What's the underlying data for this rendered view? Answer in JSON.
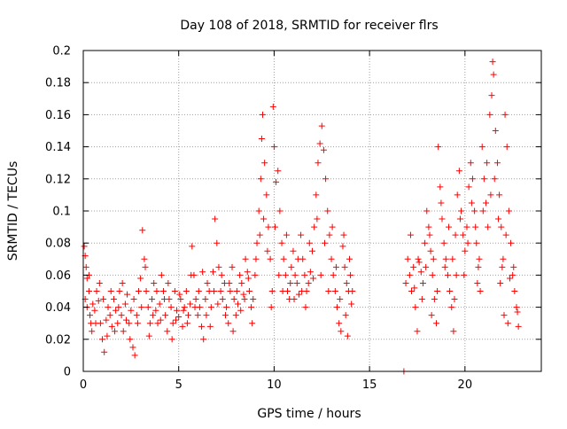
{
  "chart_data": {
    "type": "scatter",
    "title": "Day 108 of 2018, SRMTID for receiver flrs",
    "xlabel": "GPS time / hours",
    "ylabel": "SRMTID / TECUs",
    "xlim": [
      0,
      24
    ],
    "ylim": [
      0,
      0.2
    ],
    "xticks": [
      0,
      5,
      10,
      15,
      20
    ],
    "xtick_labels": [
      "0",
      "5",
      "10",
      "15",
      "20"
    ],
    "yticks": [
      0,
      0.02,
      0.04,
      0.06,
      0.08,
      0.1,
      0.12,
      0.14,
      0.16,
      0.18,
      0.2
    ],
    "ytick_labels": [
      "0",
      "0.02",
      "0.04",
      "0.06",
      "0.08",
      "0.1",
      "0.12",
      "0.14",
      "0.16",
      "0.18",
      "0.2"
    ],
    "grid": true,
    "marker": "+",
    "marker_color": "#ff0000",
    "series": [
      {
        "points": [
          [
            0.05,
            0.078
          ],
          [
            0.1,
            0.072
          ],
          [
            0.15,
            0.065
          ],
          [
            0.2,
            0.058
          ],
          [
            0.1,
            0.045
          ],
          [
            0.2,
            0.04
          ],
          [
            0.3,
            0.05
          ],
          [
            0.35,
            0.035
          ],
          [
            0.4,
            0.03
          ],
          [
            0.5,
            0.042
          ],
          [
            0.6,
            0.038
          ],
          [
            0.7,
            0.05
          ],
          [
            0.8,
            0.044
          ],
          [
            0.9,
            0.03
          ],
          [
            1.0,
            0.02
          ],
          [
            1.1,
            0.012
          ],
          [
            1.2,
            0.032
          ],
          [
            1.3,
            0.04
          ],
          [
            1.4,
            0.035
          ],
          [
            1.5,
            0.028
          ],
          [
            1.6,
            0.045
          ],
          [
            1.7,
            0.038
          ],
          [
            1.8,
            0.03
          ],
          [
            1.9,
            0.05
          ],
          [
            2.0,
            0.035
          ],
          [
            2.1,
            0.025
          ],
          [
            2.2,
            0.042
          ],
          [
            2.3,
            0.048
          ],
          [
            2.4,
            0.03
          ],
          [
            2.5,
            0.038
          ],
          [
            2.6,
            0.015
          ],
          [
            2.7,
            0.01
          ],
          [
            2.8,
            0.035
          ],
          [
            2.9,
            0.05
          ],
          [
            3.0,
            0.058
          ],
          [
            3.1,
            0.088
          ],
          [
            3.2,
            0.07
          ],
          [
            3.3,
            0.05
          ],
          [
            3.4,
            0.04
          ],
          [
            3.5,
            0.03
          ],
          [
            3.6,
            0.045
          ],
          [
            3.7,
            0.055
          ],
          [
            3.8,
            0.038
          ],
          [
            3.9,
            0.03
          ],
          [
            4.0,
            0.042
          ],
          [
            4.1,
            0.06
          ],
          [
            4.2,
            0.05
          ],
          [
            4.3,
            0.035
          ],
          [
            4.4,
            0.025
          ],
          [
            4.5,
            0.045
          ],
          [
            4.6,
            0.04
          ],
          [
            4.7,
            0.03
          ],
          [
            4.8,
            0.05
          ],
          [
            4.9,
            0.038
          ],
          [
            5.0,
            0.034
          ],
          [
            5.1,
            0.045
          ],
          [
            5.2,
            0.028
          ],
          [
            5.3,
            0.04
          ],
          [
            5.4,
            0.05
          ],
          [
            5.5,
            0.035
          ],
          [
            5.6,
            0.042
          ],
          [
            5.7,
            0.078
          ],
          [
            5.8,
            0.06
          ],
          [
            5.9,
            0.045
          ],
          [
            6.0,
            0.035
          ],
          [
            6.1,
            0.04
          ],
          [
            6.2,
            0.028
          ],
          [
            6.3,
            0.02
          ],
          [
            6.4,
            0.045
          ],
          [
            6.5,
            0.055
          ],
          [
            6.6,
            0.05
          ],
          [
            6.7,
            0.04
          ],
          [
            6.8,
            0.062
          ],
          [
            6.9,
            0.095
          ],
          [
            7.0,
            0.08
          ],
          [
            7.1,
            0.065
          ],
          [
            7.2,
            0.05
          ],
          [
            7.3,
            0.045
          ],
          [
            7.4,
            0.055
          ],
          [
            7.5,
            0.04
          ],
          [
            7.6,
            0.03
          ],
          [
            7.7,
            0.05
          ],
          [
            7.8,
            0.065
          ],
          [
            7.9,
            0.045
          ],
          [
            8.0,
            0.035
          ],
          [
            8.1,
            0.042
          ],
          [
            8.2,
            0.06
          ],
          [
            8.3,
            0.055
          ],
          [
            8.4,
            0.048
          ],
          [
            8.5,
            0.07
          ],
          [
            8.6,
            0.062
          ],
          [
            8.7,
            0.05
          ],
          [
            8.8,
            0.04
          ],
          [
            8.9,
            0.045
          ],
          [
            9.0,
            0.06
          ],
          [
            9.1,
            0.08
          ],
          [
            9.2,
            0.1
          ],
          [
            9.3,
            0.12
          ],
          [
            9.35,
            0.145
          ],
          [
            9.4,
            0.16
          ],
          [
            9.5,
            0.13
          ],
          [
            9.6,
            0.11
          ],
          [
            9.7,
            0.09
          ],
          [
            9.8,
            0.07
          ],
          [
            9.9,
            0.05
          ],
          [
            9.95,
            0.165
          ],
          [
            10.0,
            0.14
          ],
          [
            10.1,
            0.118
          ],
          [
            10.2,
            0.125
          ],
          [
            10.3,
            0.1
          ],
          [
            10.4,
            0.08
          ],
          [
            10.5,
            0.07
          ],
          [
            10.6,
            0.06
          ],
          [
            10.7,
            0.05
          ],
          [
            10.8,
            0.045
          ],
          [
            10.9,
            0.065
          ],
          [
            11.0,
            0.075
          ],
          [
            11.1,
            0.06
          ],
          [
            11.2,
            0.055
          ],
          [
            11.3,
            0.048
          ],
          [
            11.4,
            0.085
          ],
          [
            11.5,
            0.07
          ],
          [
            11.6,
            0.06
          ],
          [
            11.7,
            0.05
          ],
          [
            11.8,
            0.055
          ],
          [
            11.9,
            0.062
          ],
          [
            12.0,
            0.075
          ],
          [
            12.1,
            0.09
          ],
          [
            12.2,
            0.11
          ],
          [
            12.3,
            0.13
          ],
          [
            12.4,
            0.142
          ],
          [
            12.5,
            0.153
          ],
          [
            12.6,
            0.138
          ],
          [
            12.7,
            0.12
          ],
          [
            12.8,
            0.1
          ],
          [
            12.9,
            0.085
          ],
          [
            13.0,
            0.07
          ],
          [
            13.1,
            0.06
          ],
          [
            13.2,
            0.05
          ],
          [
            13.3,
            0.04
          ],
          [
            13.4,
            0.03
          ],
          [
            13.5,
            0.025
          ],
          [
            13.6,
            0.078
          ],
          [
            13.7,
            0.065
          ],
          [
            13.8,
            0.055
          ],
          [
            13.9,
            0.05
          ],
          [
            14.0,
            0.06
          ],
          [
            14.1,
            0.05
          ],
          [
            13.85,
            0.022
          ],
          [
            13.95,
            0.07
          ],
          [
            0.3,
            0.06
          ],
          [
            0.45,
            0.025
          ],
          [
            0.65,
            0.03
          ],
          [
            0.85,
            0.055
          ],
          [
            1.05,
            0.045
          ],
          [
            1.25,
            0.022
          ],
          [
            1.45,
            0.05
          ],
          [
            1.65,
            0.025
          ],
          [
            1.85,
            0.04
          ],
          [
            2.05,
            0.055
          ],
          [
            2.25,
            0.032
          ],
          [
            2.45,
            0.02
          ],
          [
            2.65,
            0.045
          ],
          [
            2.85,
            0.03
          ],
          [
            3.05,
            0.04
          ],
          [
            3.25,
            0.065
          ],
          [
            3.45,
            0.022
          ],
          [
            3.65,
            0.035
          ],
          [
            3.85,
            0.05
          ],
          [
            4.05,
            0.032
          ],
          [
            4.25,
            0.045
          ],
          [
            4.45,
            0.055
          ],
          [
            4.65,
            0.02
          ],
          [
            4.85,
            0.032
          ],
          [
            5.05,
            0.048
          ],
          [
            5.25,
            0.038
          ],
          [
            5.45,
            0.03
          ],
          [
            5.65,
            0.06
          ],
          [
            5.85,
            0.04
          ],
          [
            6.05,
            0.05
          ],
          [
            6.25,
            0.062
          ],
          [
            6.45,
            0.035
          ],
          [
            6.65,
            0.028
          ],
          [
            6.85,
            0.05
          ],
          [
            7.05,
            0.042
          ],
          [
            7.25,
            0.06
          ],
          [
            7.45,
            0.035
          ],
          [
            7.65,
            0.055
          ],
          [
            7.85,
            0.025
          ],
          [
            8.05,
            0.05
          ],
          [
            8.25,
            0.038
          ],
          [
            8.45,
            0.045
          ],
          [
            8.65,
            0.058
          ],
          [
            8.85,
            0.03
          ],
          [
            9.05,
            0.07
          ],
          [
            9.25,
            0.085
          ],
          [
            9.45,
            0.095
          ],
          [
            9.65,
            0.075
          ],
          [
            9.85,
            0.04
          ],
          [
            10.05,
            0.09
          ],
          [
            10.25,
            0.06
          ],
          [
            10.45,
            0.05
          ],
          [
            10.65,
            0.085
          ],
          [
            10.85,
            0.055
          ],
          [
            11.05,
            0.045
          ],
          [
            11.25,
            0.07
          ],
          [
            11.45,
            0.05
          ],
          [
            11.65,
            0.04
          ],
          [
            11.85,
            0.08
          ],
          [
            12.05,
            0.058
          ],
          [
            12.25,
            0.095
          ],
          [
            12.45,
            0.06
          ],
          [
            12.65,
            0.08
          ],
          [
            12.85,
            0.05
          ],
          [
            13.05,
            0.09
          ],
          [
            13.25,
            0.065
          ],
          [
            13.45,
            0.045
          ],
          [
            13.65,
            0.085
          ],
          [
            13.75,
            0.035
          ],
          [
            14.05,
            0.042
          ],
          [
            16.8,
            0.0
          ],
          [
            16.9,
            0.055
          ],
          [
            17.0,
            0.07
          ],
          [
            17.1,
            0.06
          ],
          [
            17.2,
            0.05
          ],
          [
            17.3,
            0.065
          ],
          [
            17.4,
            0.04
          ],
          [
            17.5,
            0.025
          ],
          [
            17.6,
            0.068
          ],
          [
            17.7,
            0.062
          ],
          [
            17.8,
            0.055
          ],
          [
            17.9,
            0.08
          ],
          [
            18.0,
            0.1
          ],
          [
            18.1,
            0.09
          ],
          [
            18.2,
            0.075
          ],
          [
            18.3,
            0.06
          ],
          [
            18.4,
            0.045
          ],
          [
            18.5,
            0.03
          ],
          [
            18.6,
            0.14
          ],
          [
            18.7,
            0.115
          ],
          [
            18.8,
            0.095
          ],
          [
            18.9,
            0.08
          ],
          [
            19.0,
            0.07
          ],
          [
            19.1,
            0.06
          ],
          [
            19.2,
            0.05
          ],
          [
            19.3,
            0.04
          ],
          [
            19.4,
            0.025
          ],
          [
            19.5,
            0.085
          ],
          [
            19.6,
            0.11
          ],
          [
            19.7,
            0.125
          ],
          [
            19.8,
            0.1
          ],
          [
            19.9,
            0.085
          ],
          [
            20.0,
            0.075
          ],
          [
            20.1,
            0.09
          ],
          [
            20.2,
            0.115
          ],
          [
            20.3,
            0.13
          ],
          [
            20.4,
            0.12
          ],
          [
            20.5,
            0.1
          ],
          [
            20.6,
            0.08
          ],
          [
            20.7,
            0.065
          ],
          [
            20.8,
            0.05
          ],
          [
            20.9,
            0.14
          ],
          [
            21.0,
            0.12
          ],
          [
            21.1,
            0.105
          ],
          [
            21.2,
            0.09
          ],
          [
            21.3,
            0.16
          ],
          [
            21.4,
            0.172
          ],
          [
            21.45,
            0.193
          ],
          [
            21.5,
            0.185
          ],
          [
            21.6,
            0.15
          ],
          [
            21.7,
            0.13
          ],
          [
            21.8,
            0.11
          ],
          [
            21.9,
            0.09
          ],
          [
            22.0,
            0.07
          ],
          [
            22.1,
            0.16
          ],
          [
            22.2,
            0.14
          ],
          [
            22.3,
            0.1
          ],
          [
            22.4,
            0.08
          ],
          [
            22.5,
            0.06
          ],
          [
            22.6,
            0.05
          ],
          [
            22.7,
            0.04
          ],
          [
            22.8,
            0.028
          ],
          [
            22.75,
            0.037
          ],
          [
            17.15,
            0.085
          ],
          [
            17.35,
            0.052
          ],
          [
            17.55,
            0.07
          ],
          [
            17.75,
            0.045
          ],
          [
            17.95,
            0.065
          ],
          [
            18.15,
            0.085
          ],
          [
            18.35,
            0.07
          ],
          [
            18.55,
            0.05
          ],
          [
            18.75,
            0.105
          ],
          [
            18.95,
            0.065
          ],
          [
            19.15,
            0.09
          ],
          [
            19.35,
            0.07
          ],
          [
            19.55,
            0.06
          ],
          [
            19.75,
            0.095
          ],
          [
            19.95,
            0.06
          ],
          [
            20.15,
            0.08
          ],
          [
            20.35,
            0.105
          ],
          [
            20.55,
            0.09
          ],
          [
            20.75,
            0.07
          ],
          [
            20.95,
            0.1
          ],
          [
            21.15,
            0.13
          ],
          [
            21.35,
            0.11
          ],
          [
            21.55,
            0.12
          ],
          [
            21.75,
            0.095
          ],
          [
            21.95,
            0.065
          ],
          [
            22.15,
            0.085
          ],
          [
            22.35,
            0.058
          ],
          [
            22.55,
            0.065
          ],
          [
            22.05,
            0.035
          ],
          [
            22.25,
            0.03
          ],
          [
            21.85,
            0.055
          ],
          [
            20.65,
            0.055
          ],
          [
            19.45,
            0.045
          ],
          [
            18.25,
            0.035
          ]
        ]
      }
    ]
  }
}
